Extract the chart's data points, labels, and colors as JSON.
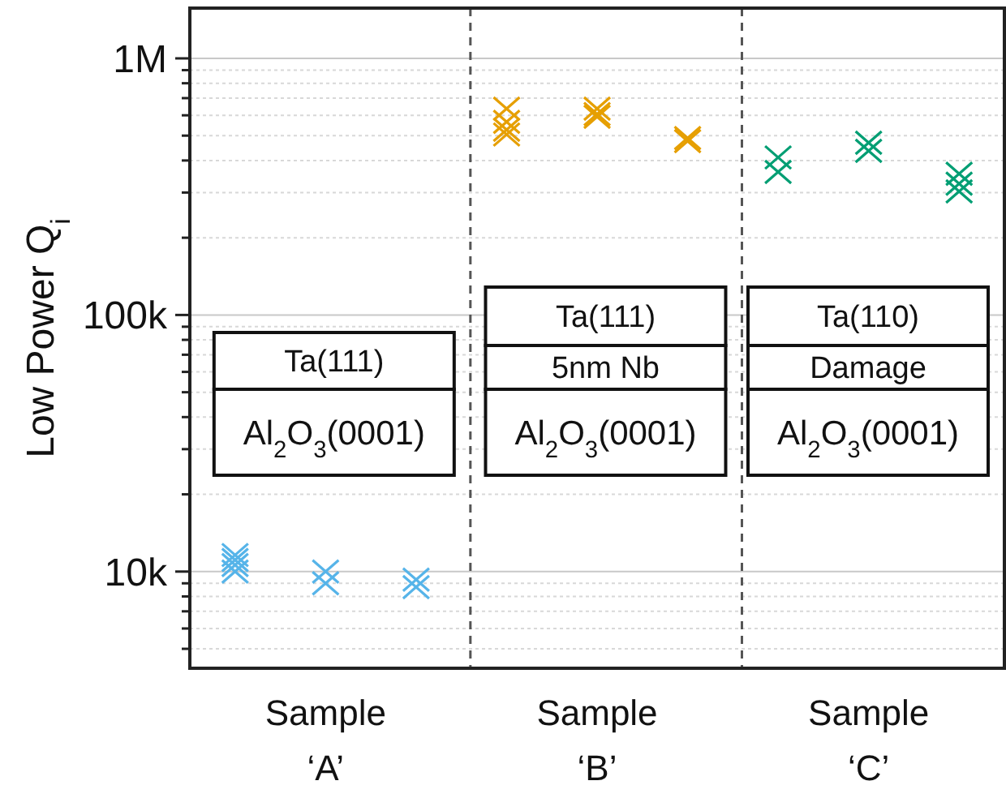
{
  "chart_data": {
    "type": "scatter",
    "ylabel": "Low Power Q$_{i}$",
    "log": "y",
    "grid": "y",
    "marker": "cross",
    "categories": [
      null,
      "Sample\n‘A’",
      null,
      null,
      "Sample\n‘B’",
      null,
      null,
      "Sample\n‘C’",
      null
    ],
    "ylim": [
      4200,
      1570000
    ],
    "yticks": [
      {
        "value": 5000,
        "label": null
      },
      {
        "value": 6000,
        "label": null
      },
      {
        "value": 7000,
        "label": null
      },
      {
        "value": 8000,
        "label": null
      },
      {
        "value": 9000,
        "label": null
      },
      {
        "value": 10000,
        "label": "10k"
      },
      {
        "value": 20000,
        "label": null
      },
      {
        "value": 30000,
        "label": null
      },
      {
        "value": 40000,
        "label": null
      },
      {
        "value": 50000,
        "label": null
      },
      {
        "value": 60000,
        "label": null
      },
      {
        "value": 70000,
        "label": null
      },
      {
        "value": 80000,
        "label": null
      },
      {
        "value": 90000,
        "label": null
      },
      {
        "value": 100000,
        "label": "100k"
      },
      {
        "value": 200000,
        "label": null
      },
      {
        "value": 300000,
        "label": null
      },
      {
        "value": 400000,
        "label": null
      },
      {
        "value": 500000,
        "label": null
      },
      {
        "value": 600000,
        "label": null
      },
      {
        "value": 700000,
        "label": null
      },
      {
        "value": 800000,
        "label": null
      },
      {
        "value": 900000,
        "label": null
      },
      {
        "value": 1000000,
        "label": "1M"
      }
    ],
    "series": [
      {
        "color": "#56b4e9",
        "values": [
          11600,
          10000,
          9300,
          null,
          null,
          null,
          null,
          null,
          null
        ]
      },
      {
        "color": "#56b4e9",
        "values": [
          11100,
          9000,
          8700,
          null,
          null,
          null,
          null,
          null,
          null
        ]
      },
      {
        "color": "#56b4e9",
        "values": [
          10600,
          null,
          null,
          null,
          null,
          null,
          null,
          null,
          null
        ]
      },
      {
        "color": "#56b4e9",
        "values": [
          10000,
          null,
          null,
          null,
          null,
          null,
          null,
          null,
          null
        ]
      },
      {
        "color": "#e69f00",
        "values": [
          null,
          null,
          null,
          637000,
          637000,
          489000,
          null,
          null,
          null
        ]
      },
      {
        "color": "#e69f00",
        "values": [
          null,
          null,
          null,
          566000,
          607000,
          476000,
          null,
          null,
          null
        ]
      },
      {
        "color": "#e69f00",
        "values": [
          null,
          null,
          null,
          527000,
          592000,
          null,
          null,
          null,
          null
        ]
      },
      {
        "color": "#e69f00",
        "values": [
          null,
          null,
          null,
          505000,
          null,
          null,
          null,
          null,
          null
        ]
      },
      {
        "color": "#009e73",
        "values": [
          null,
          null,
          null,
          null,
          null,
          null,
          411000,
          469000,
          355000
        ]
      },
      {
        "color": "#009e73",
        "values": [
          null,
          null,
          null,
          null,
          null,
          null,
          361000,
          436000,
          325000
        ]
      },
      {
        "color": "#009e73",
        "values": [
          null,
          null,
          null,
          null,
          null,
          null,
          null,
          null,
          303000
        ]
      }
    ],
    "annotations": [
      "Ta(111)",
      "Al$_{2}$O$_{3}$(0001)",
      "Ta(111)",
      "5nm Nb",
      "Al$_{2}$O$_{3}$(0001)",
      "Ta(110)",
      "Damage",
      "Al$_{2}$O$_{3}$(0001)"
    ]
  }
}
